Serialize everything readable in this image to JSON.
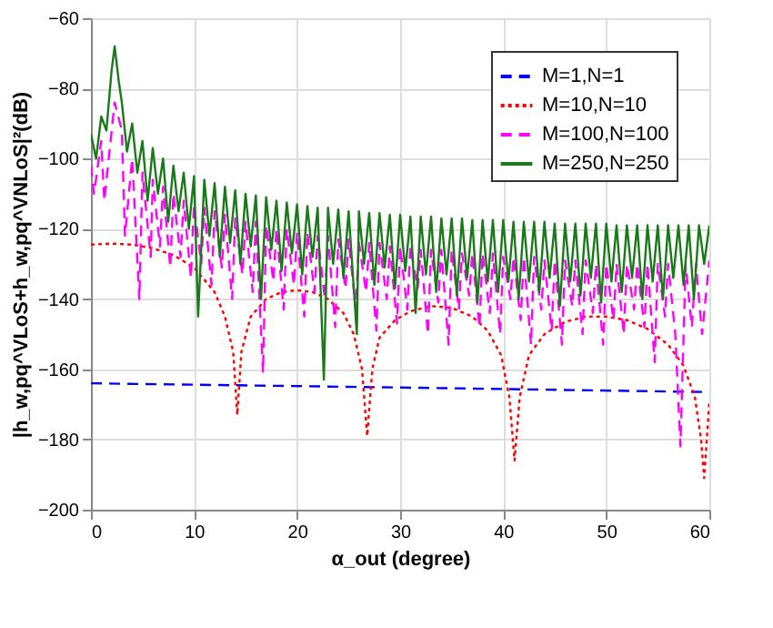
{
  "chart_data": {
    "type": "line",
    "xlabel": "α_out (degree)",
    "ylabel": "|h_w,pq^VLoS+h_w,pq^VNLoS|²(dB)",
    "xlim": [
      0,
      60
    ],
    "xticks": [
      0,
      10,
      20,
      30,
      40,
      50,
      60
    ],
    "ylim": [
      -200,
      -60
    ],
    "yticks": [
      -200,
      -180,
      -160,
      -140,
      -120,
      -100,
      -80,
      -60
    ],
    "grid": true,
    "legend": "top right",
    "series": [
      {
        "name": "M=1,N=1",
        "color": "#0000ff",
        "line_style": "dashed",
        "x": [
          0,
          30,
          60
        ],
        "values": [
          -164,
          -165.2,
          -166.5
        ]
      },
      {
        "name": "M=10,N=10",
        "color": "#ff0000",
        "line_style": "dotted",
        "x": [
          0,
          2,
          4,
          6,
          8,
          10,
          12,
          13,
          13.8,
          14.2,
          14.6,
          15.5,
          17,
          18.5,
          20,
          21.5,
          23,
          24.5,
          25.5,
          26.3,
          26.8,
          27.3,
          28,
          29.5,
          31,
          33,
          35,
          37,
          38.5,
          39.8,
          40.6,
          41.1,
          41.6,
          42.5,
          44,
          46,
          48,
          50,
          52,
          54,
          56,
          57.5,
          58.6,
          59.2,
          59.5,
          59.8,
          60
        ],
        "values": [
          -124.5,
          -124.2,
          -124.5,
          -125.5,
          -127.5,
          -131,
          -138,
          -145,
          -155,
          -173,
          -155,
          -145,
          -140,
          -138,
          -137.5,
          -138,
          -140,
          -144,
          -150,
          -160,
          -179,
          -160,
          -151,
          -146,
          -143.5,
          -142,
          -142.5,
          -145,
          -149,
          -156,
          -168,
          -186,
          -168,
          -156,
          -150,
          -146.5,
          -145,
          -145,
          -146,
          -148.5,
          -153,
          -159,
          -168,
          -180,
          -191,
          -178,
          -169
        ]
      },
      {
        "name": "M=100,N=100",
        "color": "#ff00ff",
        "line_style": "dashed",
        "x": [
          0,
          0.3,
          1,
          1.3,
          2.3,
          3,
          3.3,
          4,
          4.7,
          5,
          5.8,
          6,
          6.7,
          7,
          7.7,
          8,
          8.7,
          9,
          9.7,
          10,
          10.7,
          11,
          11.7,
          12,
          12.7,
          13,
          13.7,
          14,
          14.7,
          15,
          15.7,
          16,
          16.7,
          17,
          17.7,
          18,
          18.7,
          19,
          19.7,
          20,
          20.7,
          21,
          21.7,
          22,
          22.7,
          23,
          23.7,
          24,
          24.7,
          25,
          25.7,
          26,
          26.7,
          27,
          27.7,
          28,
          28.7,
          29,
          29.7,
          30,
          30.7,
          31,
          31.7,
          32,
          32.7,
          33,
          33.7,
          34,
          34.7,
          35,
          35.7,
          36,
          36.7,
          37,
          37.7,
          38,
          38.7,
          39,
          39.7,
          40,
          40.7,
          41,
          41.7,
          42,
          42.7,
          43,
          43.7,
          44,
          44.7,
          45,
          45.7,
          46,
          46.7,
          47,
          47.7,
          48,
          48.7,
          49,
          49.7,
          50,
          50.7,
          51,
          51.7,
          52,
          52.7,
          53,
          53.7,
          54,
          54.7,
          55,
          55.7,
          56,
          56.7,
          57.2,
          57.7,
          58.3,
          58.7,
          59.3,
          60
        ],
        "values": [
          -102,
          -110,
          -95,
          -112,
          -84,
          -92,
          -122,
          -100,
          -140,
          -104,
          -128,
          -106,
          -125,
          -108,
          -131,
          -110,
          -128,
          -112,
          -134,
          -113,
          -130,
          -114,
          -136,
          -115,
          -131,
          -116,
          -140,
          -117,
          -133,
          -118,
          -138,
          -118,
          -161,
          -119,
          -135,
          -120,
          -143,
          -120,
          -136,
          -121,
          -145,
          -121,
          -138,
          -122,
          -140,
          -122,
          -148,
          -123,
          -137,
          -123,
          -143,
          -124,
          -138,
          -124,
          -149,
          -124,
          -140,
          -125,
          -147,
          -125,
          -143,
          -125,
          -137,
          -126,
          -150,
          -126,
          -141,
          -126,
          -153,
          -126,
          -143,
          -127,
          -139,
          -127,
          -148,
          -127,
          -144,
          -127,
          -150,
          -128,
          -140,
          -128,
          -146,
          -128,
          -153,
          -128,
          -143,
          -129,
          -149,
          -129,
          -153,
          -129,
          -142,
          -129,
          -150,
          -129,
          -144,
          -130,
          -153,
          -130,
          -146,
          -130,
          -150,
          -130,
          -143,
          -130,
          -148,
          -130,
          -158,
          -130,
          -145,
          -130,
          -150,
          -182,
          -130,
          -148,
          -130,
          -150,
          -129
        ]
      },
      {
        "name": "M=250,N=250",
        "color": "#1a7a1a",
        "line_style": "solid",
        "x": [
          0,
          0.5,
          1,
          1.5,
          2,
          2.3,
          2.7,
          3,
          3.5,
          4,
          4.5,
          5,
          5.5,
          6,
          6.5,
          7,
          7.5,
          8,
          8.5,
          9,
          9.5,
          10,
          10.4,
          11,
          11.5,
          12,
          12.5,
          13,
          13.5,
          14,
          14.5,
          15,
          15.5,
          16,
          16.5,
          17,
          17.5,
          18,
          18.5,
          19,
          19.5,
          20,
          20.5,
          21,
          21.5,
          22,
          22.6,
          23,
          23.5,
          24,
          24.5,
          25,
          25.8,
          26,
          26.5,
          27,
          27.5,
          28,
          28.5,
          29,
          29.5,
          30,
          30.5,
          31,
          31.5,
          32,
          32.5,
          33,
          33.5,
          34,
          34.5,
          35,
          35.5,
          36,
          36.5,
          37,
          37.5,
          38,
          38.5,
          39,
          39.5,
          40,
          40.5,
          41,
          41.5,
          42,
          42.5,
          43,
          43.5,
          44,
          44.5,
          45,
          45.5,
          46,
          46.5,
          47,
          47.5,
          48,
          48.5,
          49,
          49.5,
          50,
          50.5,
          51,
          51.5,
          52,
          52.5,
          53,
          53.5,
          54,
          54.5,
          55,
          55.5,
          56,
          56.5,
          57,
          57.5,
          58,
          58.5,
          59,
          59.5,
          60
        ],
        "values": [
          -93,
          -100,
          -88,
          -92,
          -75,
          -68,
          -78,
          -84,
          -98,
          -90,
          -104,
          -95,
          -112,
          -97,
          -110,
          -100,
          -118,
          -102,
          -115,
          -104,
          -120,
          -105,
          -145,
          -106,
          -122,
          -107,
          -128,
          -108,
          -124,
          -109,
          -130,
          -110,
          -125,
          -110.5,
          -140,
          -111,
          -126,
          -112,
          -132,
          -112.5,
          -127,
          -113,
          -133,
          -113.5,
          -128,
          -114,
          -163,
          -114,
          -130,
          -114.5,
          -134,
          -115,
          -150,
          -115,
          -130,
          -115.5,
          -136,
          -115.5,
          -131,
          -116,
          -137,
          -116,
          -132,
          -116.5,
          -144,
          -116.5,
          -133,
          -116.5,
          -138,
          -117,
          -133,
          -117,
          -139,
          -117,
          -134,
          -117.5,
          -141,
          -117.5,
          -135,
          -117.5,
          -138,
          -117.5,
          -135,
          -118,
          -140,
          -118,
          -135,
          -118,
          -138,
          -118,
          -134,
          -118.5,
          -142,
          -118.5,
          -135,
          -118.5,
          -139,
          -118.5,
          -134,
          -118.5,
          -141,
          -118.5,
          -135,
          -119,
          -138,
          -119,
          -134,
          -119,
          -140,
          -119,
          -135,
          -119,
          -140,
          -119,
          -134,
          -119,
          -136,
          -119,
          -140,
          -119,
          -130,
          -119
        ]
      }
    ]
  }
}
